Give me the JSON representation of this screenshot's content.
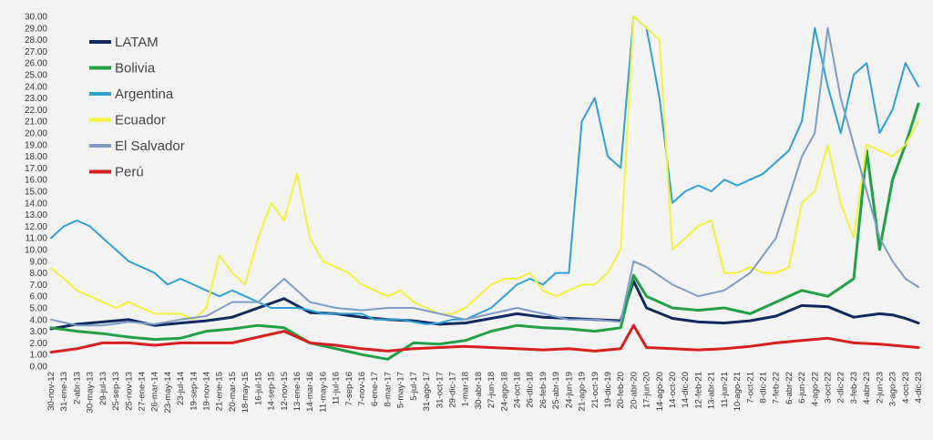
{
  "chart_data": {
    "type": "line",
    "title": "",
    "xlabel": "",
    "ylabel": "",
    "ylim": [
      0,
      30
    ],
    "grid": false,
    "legend_position": "top-left",
    "x_tick_labels": [
      "30-nov-12",
      "31-ene-13",
      "2-abr-13",
      "30-may-13",
      "29-jul-13",
      "25-sep-13",
      "25-nov-13",
      "27-ene-14",
      "26-mar-14",
      "23-may-14",
      "23-jul-14",
      "19-sep-14",
      "19-nov-14",
      "21-ene-15",
      "20-mar-15",
      "18-may-15",
      "16-jul-15",
      "14-sep-15",
      "12-nov-15",
      "13-ene-16",
      "14-mar-16",
      "11-may-16",
      "11-jul-16",
      "7-sep-16",
      "7-nov-16",
      "6-ene-17",
      "8-mar-17",
      "5-may-17",
      "5-jul-17",
      "31-ago-17",
      "31-oct-17",
      "29-dic-17",
      "1-mar-18",
      "30-abr-18",
      "27-jun-18",
      "24-ago-18",
      "24-oct-18",
      "26-dic-18",
      "26-feb-19",
      "25-abr-19",
      "24-jun-19",
      "21-ago-19",
      "21-oct-19",
      "19-dic-19",
      "20-feb-20",
      "20-abr-20",
      "17-jun-20",
      "14-ago-20",
      "14-oct-20",
      "14-dic-20",
      "12-feb-21",
      "13-abr-21",
      "11-jun-21",
      "10-ago-21",
      "7-oct-21",
      "8-dic-21",
      "7-feb-22",
      "6-abr-22",
      "6-jun-22",
      "4-ago-22",
      "3-oct-22",
      "2-dic-22",
      "3-feb-23",
      "4-abr-23",
      "2-jun-23",
      "3-ago-23",
      "4-oct-23",
      "4-dic-23"
    ],
    "y_tick_labels": [
      "0.00",
      "1.00",
      "2.00",
      "3.00",
      "4.00",
      "5.00",
      "6.00",
      "7.00",
      "8.00",
      "9.00",
      "10.00",
      "11.00",
      "12.00",
      "13.00",
      "14.00",
      "15.00",
      "16.00",
      "17.00",
      "18.00",
      "19.00",
      "20.00",
      "21.00",
      "22.00",
      "23.00",
      "24.00",
      "25.00",
      "26.00",
      "27.00",
      "28.00",
      "29.00",
      "30.00"
    ],
    "series": [
      {
        "name": "LATAM",
        "color": "#0f2a5c",
        "width": 3,
        "x": [
          0,
          2,
          4,
          6,
          8,
          10,
          12,
          14,
          16,
          18,
          20,
          22,
          24,
          26,
          28,
          30,
          32,
          34,
          36,
          38,
          40,
          42,
          44,
          45,
          46,
          48,
          50,
          52,
          54,
          56,
          58,
          60,
          62,
          64,
          65,
          66,
          67
        ],
        "values": [
          3.2,
          3.6,
          3.8,
          4.0,
          3.5,
          3.7,
          3.9,
          4.2,
          5.0,
          5.8,
          4.6,
          4.5,
          4.2,
          4.0,
          3.9,
          3.6,
          3.7,
          4.1,
          4.5,
          4.2,
          4.1,
          4.0,
          3.9,
          7.3,
          5.0,
          4.1,
          3.8,
          3.7,
          3.9,
          4.3,
          5.2,
          5.1,
          4.2,
          4.5,
          4.4,
          4.1,
          3.7
        ]
      },
      {
        "name": "Bolivia",
        "color": "#21a045",
        "width": 3,
        "x": [
          0,
          2,
          4,
          6,
          8,
          10,
          12,
          14,
          16,
          18,
          20,
          22,
          24,
          26,
          28,
          30,
          32,
          34,
          36,
          38,
          40,
          42,
          44,
          45,
          46,
          48,
          50,
          52,
          54,
          56,
          58,
          60,
          62,
          63,
          64,
          65,
          66,
          67
        ],
        "values": [
          3.3,
          3.0,
          2.8,
          2.5,
          2.3,
          2.4,
          3.0,
          3.2,
          3.5,
          3.3,
          2.0,
          1.5,
          1.0,
          0.6,
          2.0,
          1.9,
          2.2,
          3.0,
          3.5,
          3.3,
          3.2,
          3.0,
          3.3,
          7.8,
          6.0,
          5.0,
          4.8,
          5.0,
          4.5,
          5.5,
          6.5,
          6.0,
          7.5,
          18.5,
          10.0,
          16.0,
          19.0,
          22.5
        ]
      },
      {
        "name": "Argentina",
        "color": "#2f9fd6",
        "width": 2,
        "x": [
          0,
          1,
          2,
          3,
          4,
          5,
          6,
          7,
          8,
          9,
          10,
          11,
          12,
          13,
          14,
          15,
          16,
          17,
          18,
          19,
          20,
          21,
          22,
          23,
          24,
          25,
          26,
          27,
          28,
          29,
          30,
          31,
          32,
          33,
          34,
          35,
          36,
          37,
          38,
          39,
          40,
          41,
          42,
          43,
          44,
          45,
          46,
          47,
          48,
          49,
          50,
          51,
          52,
          53,
          54,
          55,
          56,
          57,
          58,
          59,
          60,
          61,
          62,
          63,
          64,
          65,
          66,
          67
        ],
        "values": [
          11.0,
          12.0,
          12.5,
          12.0,
          11.0,
          10.0,
          9.0,
          8.5,
          8.0,
          7.0,
          7.5,
          7.0,
          6.5,
          6.0,
          6.5,
          6.0,
          5.5,
          5.0,
          5.0,
          5.0,
          4.8,
          4.5,
          4.5,
          4.5,
          4.5,
          4.0,
          4.0,
          4.0,
          3.8,
          3.6,
          3.7,
          4.0,
          4.0,
          4.5,
          5.0,
          6.0,
          7.0,
          7.5,
          7.0,
          8.0,
          8.0,
          21.0,
          23.0,
          18.0,
          17.0,
          30.0,
          29.0,
          23.0,
          14.0,
          15.0,
          15.5,
          15.0,
          16.0,
          15.5,
          16.0,
          16.5,
          17.5,
          18.5,
          21.0,
          29.0,
          24.0,
          20.0,
          25.0,
          26.0,
          20.0,
          22.0,
          26.0,
          24.0
        ]
      },
      {
        "name": "Ecuador",
        "color": "#f2f23c",
        "width": 2,
        "x": [
          0,
          1,
          2,
          3,
          4,
          5,
          6,
          7,
          8,
          9,
          10,
          11,
          12,
          13,
          14,
          15,
          16,
          17,
          18,
          19,
          20,
          21,
          22,
          23,
          24,
          25,
          26,
          27,
          28,
          29,
          30,
          31,
          32,
          33,
          34,
          35,
          36,
          37,
          38,
          39,
          40,
          41,
          42,
          43,
          44,
          45,
          46,
          47,
          48,
          49,
          50,
          51,
          52,
          53,
          54,
          55,
          56,
          57,
          58,
          59,
          60,
          61,
          62,
          63,
          64,
          65,
          66,
          67
        ],
        "values": [
          8.4,
          7.5,
          6.5,
          6.0,
          5.5,
          5.0,
          5.5,
          5.0,
          4.5,
          4.5,
          4.5,
          4.0,
          5.0,
          9.5,
          8.0,
          7.0,
          11.0,
          14.0,
          12.5,
          16.5,
          11.0,
          9.0,
          8.5,
          8.0,
          7.0,
          6.5,
          6.0,
          6.5,
          5.5,
          5.0,
          4.5,
          4.5,
          5.0,
          6.0,
          7.0,
          7.5,
          7.5,
          8.0,
          6.5,
          6.0,
          6.5,
          7.0,
          7.0,
          8.0,
          10.0,
          30.0,
          29.0,
          28.0,
          10.0,
          11.0,
          12.0,
          12.5,
          8.0,
          8.0,
          8.5,
          8.0,
          8.0,
          8.5,
          14.0,
          15.0,
          19.0,
          14.0,
          11.0,
          19.0,
          18.5,
          18.0,
          19.0,
          21.0
        ]
      },
      {
        "name": "El Salvador",
        "color": "#7c9cc9",
        "width": 2,
        "x": [
          0,
          2,
          4,
          6,
          8,
          10,
          12,
          14,
          16,
          18,
          20,
          22,
          24,
          26,
          28,
          30,
          32,
          34,
          36,
          38,
          40,
          42,
          44,
          45,
          46,
          48,
          50,
          52,
          54,
          56,
          58,
          59,
          60,
          61,
          62,
          63,
          64,
          65,
          66,
          67
        ],
        "values": [
          4.0,
          3.5,
          3.5,
          3.8,
          3.6,
          4.0,
          4.3,
          5.5,
          5.5,
          7.5,
          5.5,
          5.0,
          4.8,
          5.0,
          5.0,
          4.5,
          4.0,
          4.5,
          5.0,
          4.5,
          4.0,
          4.0,
          3.8,
          9.0,
          8.5,
          7.0,
          6.0,
          6.5,
          8.0,
          11.0,
          18.0,
          20.0,
          29.0,
          23.0,
          19.0,
          15.0,
          11.0,
          9.0,
          7.5,
          6.8
        ]
      },
      {
        "name": "Perú",
        "color": "#d81f1f",
        "width": 3,
        "x": [
          0,
          2,
          4,
          6,
          8,
          10,
          12,
          14,
          16,
          18,
          20,
          22,
          24,
          26,
          28,
          30,
          32,
          34,
          36,
          38,
          40,
          42,
          44,
          45,
          46,
          48,
          50,
          52,
          54,
          56,
          58,
          60,
          62,
          64,
          65,
          66,
          67
        ],
        "values": [
          1.2,
          1.5,
          2.0,
          2.0,
          1.8,
          2.0,
          2.0,
          2.0,
          2.5,
          3.0,
          2.0,
          1.8,
          1.5,
          1.3,
          1.5,
          1.6,
          1.7,
          1.6,
          1.5,
          1.4,
          1.5,
          1.3,
          1.5,
          3.5,
          1.6,
          1.5,
          1.4,
          1.5,
          1.7,
          2.0,
          2.2,
          2.4,
          2.0,
          1.9,
          1.8,
          1.7,
          1.6
        ]
      }
    ]
  }
}
